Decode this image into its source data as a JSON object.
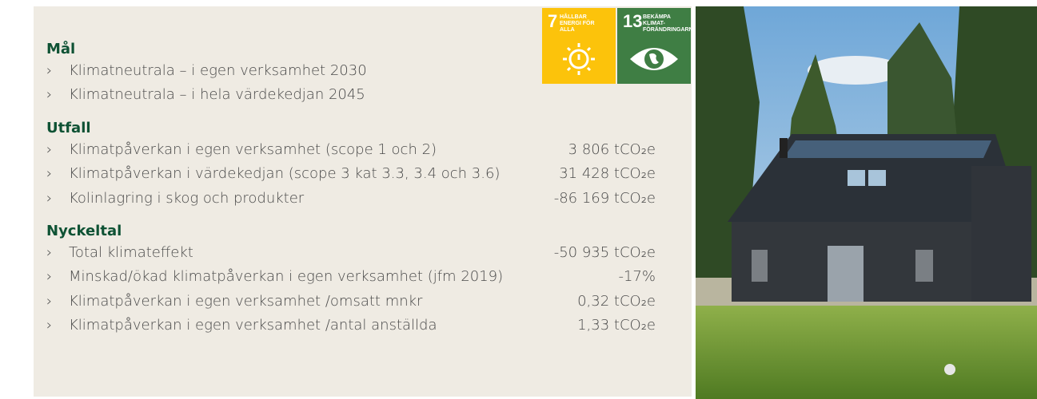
{
  "sdg": [
    {
      "number": "7",
      "label": "HÅLLBAR ENERGI FÖR ALLA"
    },
    {
      "number": "13",
      "label": "BEKÄMPA KLIMAT-FÖRÄNDRINGARNA"
    }
  ],
  "sections": [
    {
      "heading": "Mål",
      "items": [
        {
          "text": "Klimatneutrala – i egen verksamhet 2030"
        },
        {
          "text": "Klimatneutrala – i hela värdekedjan 2045"
        }
      ]
    },
    {
      "heading": "Utfall",
      "items": [
        {
          "text": "Klimatpåverkan i egen verksamhet (scope 1 och 2)",
          "value": "3 806 tCO₂e"
        },
        {
          "text": "Klimatpåverkan i värdekedjan (scope 3 kat 3.3, 3.4 och 3.6)",
          "value": "31 428 tCO₂e"
        },
        {
          "text": "Kolinlagring i skog och produkter",
          "value": "-86 169 tCO₂e"
        }
      ]
    },
    {
      "heading": "Nyckeltal",
      "items": [
        {
          "text": "Total klimateffekt",
          "value": "-50 935 tCO₂e"
        },
        {
          "text": "Minskad/ökad klimatpåverkan i egen verksamhet (jfm 2019)",
          "value": "-17%"
        },
        {
          "text": "Klimatpåverkan i egen verksamhet /omsatt mnkr",
          "value": "0,32 tCO₂e"
        },
        {
          "text": "Klimatpåverkan i egen verksamhet /antal anställda",
          "value": "1,33 tCO₂e"
        }
      ]
    }
  ]
}
